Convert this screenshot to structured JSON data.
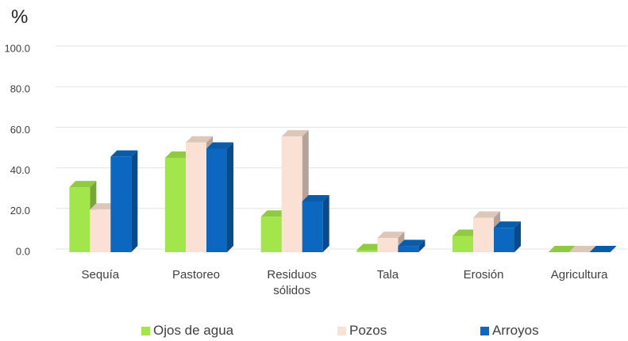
{
  "chart_data": {
    "type": "bar",
    "title": "%",
    "categories": [
      "Sequía",
      "Pastoreo",
      "Residuos sólidos",
      "Tala",
      "Erosión",
      "Agricultura"
    ],
    "series": [
      {
        "name": "Ojos de agua",
        "color": "#a3e64b",
        "values": [
          32,
          46.5,
          17.5,
          1,
          8,
          0
        ]
      },
      {
        "name": "Pozos",
        "color": "#fbe1d3",
        "values": [
          21,
          54,
          57,
          7,
          17,
          0
        ]
      },
      {
        "name": "Arroyos",
        "color": "#0b67bf",
        "values": [
          47,
          51,
          25,
          3,
          12,
          0
        ]
      }
    ],
    "ylim": [
      0,
      100
    ],
    "yticks": [
      {
        "value": 0,
        "label": "0.0"
      },
      {
        "value": 20,
        "label": "20.0"
      },
      {
        "value": 40,
        "label": "40.0"
      },
      {
        "value": 60,
        "label": "60.0"
      },
      {
        "value": 80,
        "label": "80.0"
      },
      {
        "value": 100,
        "label": "100.0"
      }
    ],
    "grid": true
  }
}
